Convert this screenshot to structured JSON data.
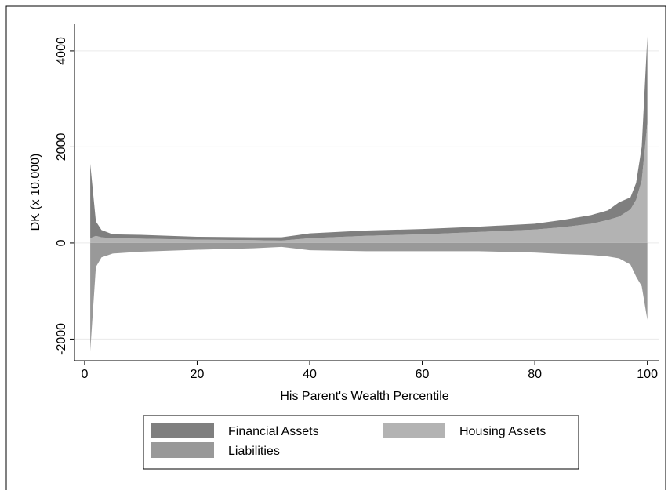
{
  "chart_data": {
    "type": "area",
    "x_label": "His Parent's Wealth Percentile",
    "y_label": "DK (x 10.000)",
    "x": [
      1,
      2,
      3,
      5,
      10,
      20,
      30,
      35,
      40,
      50,
      60,
      70,
      80,
      85,
      90,
      93,
      95,
      97,
      98,
      99,
      100
    ],
    "series": [
      {
        "name": "Financial Assets",
        "color": "#7f7f7f",
        "values": [
          1550,
          300,
          150,
          80,
          80,
          60,
          60,
          70,
          100,
          110,
          110,
          110,
          120,
          150,
          180,
          200,
          300,
          250,
          350,
          700,
          1800
        ]
      },
      {
        "name": "Housing Assets",
        "color": "#b3b3b3",
        "values": [
          100,
          150,
          120,
          100,
          90,
          70,
          60,
          50,
          100,
          150,
          180,
          230,
          280,
          330,
          400,
          480,
          550,
          700,
          900,
          1300,
          2500
        ]
      },
      {
        "name": "Liabilities",
        "color": "#999999",
        "values": [
          -2250,
          -500,
          -300,
          -220,
          -180,
          -140,
          -110,
          -80,
          -150,
          -170,
          -170,
          -170,
          -200,
          -230,
          -250,
          -280,
          -320,
          -450,
          -700,
          -900,
          -1600
        ]
      }
    ],
    "xlim": [
      -1.8,
      102
    ],
    "ylim": [
      -2450,
      4570
    ],
    "xticks": [
      0,
      20,
      40,
      60,
      80,
      100
    ],
    "yticks": [
      -2000,
      0,
      2000,
      4000
    ],
    "grid": true
  }
}
